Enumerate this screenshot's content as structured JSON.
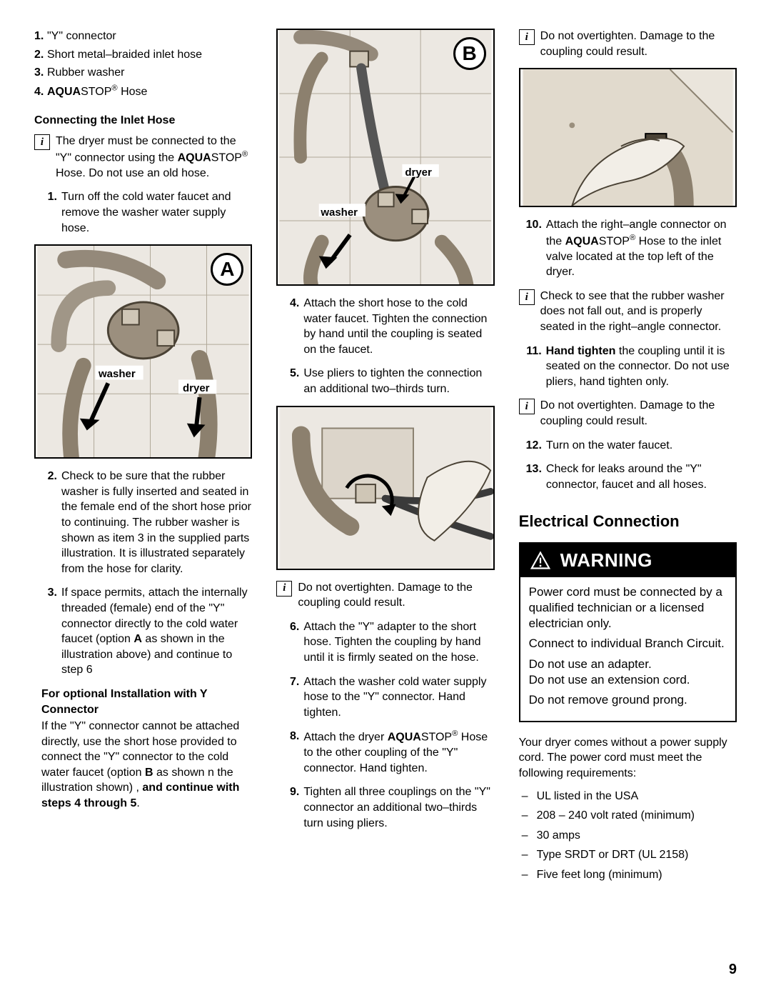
{
  "page_number": "9",
  "col1": {
    "parts": [
      {
        "num": "1.",
        "text": "\"Y\" connector",
        "bold_prefix": ""
      },
      {
        "num": "2.",
        "text": "Short metal–braided inlet hose",
        "bold_prefix": ""
      },
      {
        "num": "3.",
        "text": "Rubber washer",
        "bold_prefix": ""
      },
      {
        "num": "4.",
        "text_html": "<b>AQUA</b>STOP<sup>®</sup> Hose"
      }
    ],
    "subhead1": "Connecting the Inlet Hose",
    "info1_html": "The dryer must be connected to the \"Y\" connector using the <b>AQUA</b>STOP<sup>®</sup> Hose.  Do not use an old hose.",
    "step1": "Turn off the cold water faucet and remove the washer water supply hose.",
    "illusA": {
      "letter": "A",
      "label_washer": "washer",
      "label_dryer": "dryer"
    },
    "step2": "Check to be sure that the rubber washer is fully inserted and seated in the female end of the short hose prior to continuing.  The rubber washer is shown as item 3 in the supplied parts illustration.  It is illustrated separately from the hose for clarity.",
    "step3_html": "If space permits, attach the internally threaded (female) end of the \"Y\" connector directly to the cold water faucet (option <b>A</b> as shown in the illustration above) and continue to step 6",
    "opt_head": "For optional Installation with Y Connector",
    "opt_body_html": "If the \"Y\" connector cannot be attached directly, use the short hose provided to connect the \"Y\" connector to the cold water faucet (option <b>B</b> as shown n the illustration shown) , <b>and continue with steps 4 through 5</b>."
  },
  "col2": {
    "illusB": {
      "letter": "B",
      "label_washer": "washer",
      "label_dryer": "dryer"
    },
    "step4": "Attach the short hose to the cold water faucet.  Tighten the connection by hand until the coupling is seated on the faucet.",
    "step5": "Use pliers to tighten the connection an additional two–thirds turn.",
    "info1": "Do not overtighten.  Damage to the coupling could result.",
    "step6": "Attach the \"Y\" adapter to the short hose.  Tighten the coupling by hand until it is firmly seated on the hose.",
    "step7": "Attach the washer cold water supply hose to the \"Y\" connector.  Hand tighten.",
    "step8_html": "Attach the dryer <b>AQUA</b>STOP<sup>®</sup> Hose to the other coupling of the \"Y\" connector.  Hand tighten.",
    "step9": "Tighten all three couplings on the \"Y\" connector an additional two–thirds turn using pliers."
  },
  "col3": {
    "info1": "Do not overtighten.  Damage to the coupling could result.",
    "step10_html": "Attach the right–angle connector on the <b>AQUA</b>STOP<sup>®</sup> Hose to the inlet valve located at the top left of the dryer.",
    "info2": "Check to see that the rubber washer does not fall out, and is properly seated in the right–angle connector.",
    "step11_html": "<b>Hand tighten</b> the coupling until it is seated on the connector.  Do not use pliers, hand tighten only.",
    "info3": "Do not overtighten.  Damage to the coupling could result.",
    "step12": "Turn on the water faucet.",
    "step13": "Check for leaks around the \"Y\" connector, faucet and all hoses.",
    "section_title": "Electrical Connection",
    "warning_label": "WARNING",
    "warning_body": {
      "p1": "Power cord must be connected by a qualified technician or a licensed electrician only.",
      "p2": "Connect to individual Branch Circuit.",
      "p3a": "Do not use an adapter.",
      "p3b": "Do not use an extension cord.",
      "p4": "Do not remove ground prong."
    },
    "req_intro": "Your dryer comes without a power supply cord. The power cord must meet the following requirements:",
    "req_items": [
      "UL listed in the USA",
      "208 – 240 volt rated (minimum)",
      "30 amps",
      "Type SRDT or DRT (UL 2158)",
      "Five feet long (minimum)"
    ]
  }
}
